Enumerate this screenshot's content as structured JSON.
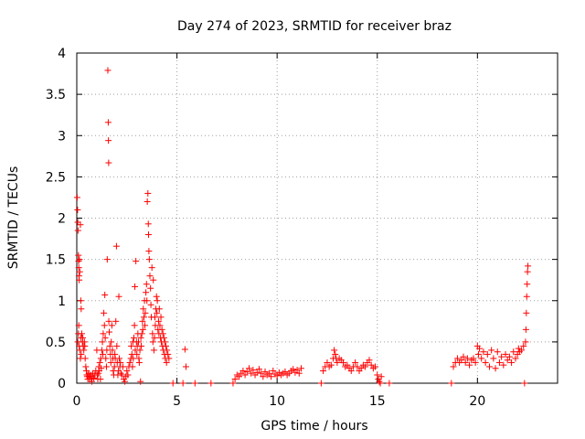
{
  "chart_data": {
    "type": "scatter",
    "title": "Day 274 of 2023, SRMTID for receiver braz",
    "xlabel": "GPS time / hours",
    "ylabel": "SRMTID / TECUs",
    "xlim": [
      0,
      24
    ],
    "ylim": [
      0,
      4
    ],
    "x_ticks": [
      0,
      5,
      10,
      15,
      20
    ],
    "x_tick_labels": [
      "0",
      "5",
      "10",
      "15",
      "20"
    ],
    "y_ticks": [
      0,
      0.5,
      1,
      1.5,
      2,
      2.5,
      3,
      3.5,
      4
    ],
    "y_tick_labels": [
      "0",
      "0.5",
      "1",
      "1.5",
      "2",
      "2.5",
      "3",
      "3.5",
      "4"
    ],
    "grid": true,
    "marker": "+",
    "color": "#ff0000",
    "series": [
      {
        "name": "SRMTID",
        "points": [
          [
            0.02,
            2.25
          ],
          [
            0.04,
            2.1
          ],
          [
            0.05,
            1.95
          ],
          [
            0.06,
            1.85
          ],
          [
            0.08,
            1.55
          ],
          [
            0.09,
            1.48
          ],
          [
            0.1,
            1.4
          ],
          [
            0.11,
            1.3
          ],
          [
            0.12,
            1.25
          ],
          [
            0.13,
            1.5
          ],
          [
            0.15,
            1.35
          ],
          [
            0.18,
            1.92
          ],
          [
            0.2,
            1.0
          ],
          [
            0.22,
            0.9
          ],
          [
            0.05,
            0.5
          ],
          [
            0.08,
            0.6
          ],
          [
            0.1,
            0.7
          ],
          [
            0.12,
            0.45
          ],
          [
            0.15,
            0.4
          ],
          [
            0.18,
            0.3
          ],
          [
            0.2,
            0.55
          ],
          [
            0.22,
            0.35
          ],
          [
            0.25,
            0.6
          ],
          [
            0.28,
            0.5
          ],
          [
            0.3,
            0.55
          ],
          [
            0.32,
            0.45
          ],
          [
            0.35,
            0.4
          ],
          [
            0.38,
            0.5
          ],
          [
            0.4,
            0.45
          ],
          [
            0.42,
            0.3
          ],
          [
            0.45,
            0.2
          ],
          [
            0.48,
            0.15
          ],
          [
            0.5,
            0.1
          ],
          [
            0.52,
            0.08
          ],
          [
            0.55,
            0.05
          ],
          [
            0.58,
            0.1
          ],
          [
            0.6,
            0.12
          ],
          [
            0.62,
            0.05
          ],
          [
            0.65,
            0.08
          ],
          [
            0.7,
            0.1
          ],
          [
            0.72,
            0.05
          ],
          [
            0.75,
            0.02
          ],
          [
            0.78,
            0.08
          ],
          [
            0.8,
            0.12
          ],
          [
            0.85,
            0.06
          ],
          [
            0.9,
            0.1
          ],
          [
            0.95,
            0.15
          ],
          [
            1.0,
            0.4
          ],
          [
            1.02,
            0.1
          ],
          [
            1.05,
            0.05
          ],
          [
            1.08,
            0.12
          ],
          [
            1.1,
            0.2
          ],
          [
            1.12,
            0.15
          ],
          [
            1.15,
            0.25
          ],
          [
            1.18,
            0.05
          ],
          [
            1.2,
            0.3
          ],
          [
            1.22,
            0.18
          ],
          [
            1.25,
            0.4
          ],
          [
            1.28,
            0.5
          ],
          [
            1.3,
            0.35
          ],
          [
            1.32,
            0.6
          ],
          [
            1.35,
            0.85
          ],
          [
            1.38,
            0.7
          ],
          [
            1.4,
            1.07
          ],
          [
            1.42,
            0.55
          ],
          [
            1.45,
            0.3
          ],
          [
            1.48,
            0.2
          ],
          [
            1.5,
            0.4
          ],
          [
            1.52,
            1.5
          ],
          [
            1.55,
            3.79
          ],
          [
            1.57,
            3.16
          ],
          [
            1.58,
            2.94
          ],
          [
            1.59,
            2.67
          ],
          [
            1.6,
            0.75
          ],
          [
            1.62,
            0.62
          ],
          [
            1.65,
            0.45
          ],
          [
            1.68,
            0.35
          ],
          [
            1.7,
            0.25
          ],
          [
            1.72,
            0.5
          ],
          [
            1.75,
            0.7
          ],
          [
            1.78,
            0.4
          ],
          [
            1.8,
            0.3
          ],
          [
            1.82,
            0.15
          ],
          [
            1.85,
            0.1
          ],
          [
            1.88,
            0.2
          ],
          [
            1.9,
            0.35
          ],
          [
            1.92,
            0.3
          ],
          [
            1.95,
            0.75
          ],
          [
            1.98,
            1.66
          ],
          [
            2.0,
            0.45
          ],
          [
            2.02,
            0.25
          ],
          [
            2.05,
            0.1
          ],
          [
            2.08,
            0.15
          ],
          [
            2.1,
            1.05
          ],
          [
            2.12,
            0.3
          ],
          [
            2.15,
            0.2
          ],
          [
            2.18,
            0.25
          ],
          [
            2.2,
            0.12
          ],
          [
            2.25,
            0.1
          ],
          [
            2.3,
            0.2
          ],
          [
            2.35,
            0.05
          ],
          [
            2.4,
            0.02
          ],
          [
            2.45,
            0.08
          ],
          [
            2.5,
            0.15
          ],
          [
            2.55,
            0.1
          ],
          [
            2.6,
            0.2
          ],
          [
            2.65,
            0.25
          ],
          [
            2.7,
            0.3
          ],
          [
            2.72,
            0.45
          ],
          [
            2.75,
            0.35
          ],
          [
            2.78,
            0.2
          ],
          [
            2.8,
            0.5
          ],
          [
            2.82,
            0.3
          ],
          [
            2.85,
            0.55
          ],
          [
            2.88,
            0.7
          ],
          [
            2.9,
            1.17
          ],
          [
            2.92,
            0.4
          ],
          [
            2.95,
            1.48
          ],
          [
            2.98,
            0.5
          ],
          [
            3.0,
            0.35
          ],
          [
            3.02,
            0.45
          ],
          [
            3.05,
            0.6
          ],
          [
            3.08,
            0.5
          ],
          [
            3.1,
            0.3
          ],
          [
            3.12,
            0.25
          ],
          [
            3.15,
            0.4
          ],
          [
            3.18,
            0.02
          ],
          [
            3.2,
            0.55
          ],
          [
            3.22,
            0.45
          ],
          [
            3.25,
            0.6
          ],
          [
            3.28,
            0.75
          ],
          [
            3.3,
            0.65
          ],
          [
            3.32,
            0.9
          ],
          [
            3.35,
            0.8
          ],
          [
            3.38,
            1.0
          ],
          [
            3.4,
            0.7
          ],
          [
            3.42,
            0.85
          ],
          [
            3.45,
            1.1
          ],
          [
            3.48,
            1.2
          ],
          [
            3.5,
            1.0
          ],
          [
            3.52,
            2.2
          ],
          [
            3.55,
            2.3
          ],
          [
            3.57,
            1.93
          ],
          [
            3.58,
            1.8
          ],
          [
            3.6,
            1.6
          ],
          [
            3.62,
            1.5
          ],
          [
            3.65,
            1.3
          ],
          [
            3.68,
            1.15
          ],
          [
            3.7,
            0.95
          ],
          [
            3.72,
            0.8
          ],
          [
            3.75,
            1.4
          ],
          [
            3.78,
            0.6
          ],
          [
            3.8,
            0.5
          ],
          [
            3.82,
            1.25
          ],
          [
            3.85,
            0.4
          ],
          [
            3.88,
            0.55
          ],
          [
            3.9,
            0.8
          ],
          [
            3.92,
            0.7
          ],
          [
            3.95,
            0.9
          ],
          [
            3.98,
            1.05
          ],
          [
            4.0,
            0.85
          ],
          [
            4.02,
            1.0
          ],
          [
            4.05,
            0.65
          ],
          [
            4.08,
            0.75
          ],
          [
            4.1,
            0.6
          ],
          [
            4.12,
            0.9
          ],
          [
            4.15,
            0.7
          ],
          [
            4.18,
            0.55
          ],
          [
            4.2,
            0.8
          ],
          [
            4.22,
            0.5
          ],
          [
            4.25,
            0.65
          ],
          [
            4.28,
            0.45
          ],
          [
            4.3,
            0.6
          ],
          [
            4.32,
            0.4
          ],
          [
            4.35,
            0.55
          ],
          [
            4.38,
            0.35
          ],
          [
            4.4,
            0.5
          ],
          [
            4.42,
            0.3
          ],
          [
            4.45,
            0.45
          ],
          [
            4.48,
            0.25
          ],
          [
            4.5,
            0.4
          ],
          [
            4.55,
            0.35
          ],
          [
            4.6,
            0.3
          ],
          [
            4.8,
            0.0
          ],
          [
            5.3,
            0.0
          ],
          [
            5.4,
            0.41
          ],
          [
            5.45,
            0.2
          ],
          [
            5.9,
            0.0
          ],
          [
            6.7,
            0.0
          ],
          [
            7.8,
            0.0
          ],
          [
            7.9,
            0.05
          ],
          [
            8.0,
            0.1
          ],
          [
            8.1,
            0.08
          ],
          [
            8.2,
            0.12
          ],
          [
            8.3,
            0.15
          ],
          [
            8.4,
            0.1
          ],
          [
            8.5,
            0.14
          ],
          [
            8.6,
            0.18
          ],
          [
            8.7,
            0.12
          ],
          [
            8.8,
            0.16
          ],
          [
            8.9,
            0.1
          ],
          [
            9.0,
            0.13
          ],
          [
            9.1,
            0.17
          ],
          [
            9.2,
            0.12
          ],
          [
            9.3,
            0.08
          ],
          [
            9.4,
            0.14
          ],
          [
            9.5,
            0.1
          ],
          [
            9.6,
            0.12
          ],
          [
            9.7,
            0.08
          ],
          [
            9.8,
            0.15
          ],
          [
            9.9,
            0.11
          ],
          [
            10.0,
            0.09
          ],
          [
            10.1,
            0.13
          ],
          [
            10.2,
            0.1
          ],
          [
            10.3,
            0.12
          ],
          [
            10.4,
            0.14
          ],
          [
            10.5,
            0.1
          ],
          [
            10.6,
            0.12
          ],
          [
            10.7,
            0.15
          ],
          [
            10.8,
            0.17
          ],
          [
            10.9,
            0.13
          ],
          [
            11.0,
            0.16
          ],
          [
            11.1,
            0.12
          ],
          [
            11.2,
            0.18
          ],
          [
            12.2,
            0.0
          ],
          [
            12.3,
            0.15
          ],
          [
            12.4,
            0.2
          ],
          [
            12.5,
            0.25
          ],
          [
            12.6,
            0.2
          ],
          [
            12.7,
            0.22
          ],
          [
            12.8,
            0.3
          ],
          [
            12.85,
            0.4
          ],
          [
            12.9,
            0.35
          ],
          [
            12.95,
            0.3
          ],
          [
            13.0,
            0.25
          ],
          [
            13.1,
            0.3
          ],
          [
            13.2,
            0.28
          ],
          [
            13.3,
            0.25
          ],
          [
            13.4,
            0.2
          ],
          [
            13.5,
            0.22
          ],
          [
            13.6,
            0.18
          ],
          [
            13.7,
            0.15
          ],
          [
            13.8,
            0.2
          ],
          [
            13.9,
            0.25
          ],
          [
            14.0,
            0.2
          ],
          [
            14.1,
            0.15
          ],
          [
            14.2,
            0.18
          ],
          [
            14.3,
            0.22
          ],
          [
            14.4,
            0.2
          ],
          [
            14.5,
            0.25
          ],
          [
            14.6,
            0.28
          ],
          [
            14.7,
            0.22
          ],
          [
            14.8,
            0.18
          ],
          [
            14.9,
            0.2
          ],
          [
            15.0,
            0.1
          ],
          [
            15.05,
            0.05
          ],
          [
            15.1,
            0.02
          ],
          [
            15.15,
            0.0
          ],
          [
            15.2,
            0.08
          ],
          [
            15.6,
            0.0
          ],
          [
            18.7,
            0.0
          ],
          [
            18.8,
            0.2
          ],
          [
            18.9,
            0.25
          ],
          [
            19.0,
            0.3
          ],
          [
            19.1,
            0.25
          ],
          [
            19.2,
            0.28
          ],
          [
            19.3,
            0.32
          ],
          [
            19.4,
            0.25
          ],
          [
            19.5,
            0.3
          ],
          [
            19.6,
            0.22
          ],
          [
            19.7,
            0.28
          ],
          [
            19.8,
            0.3
          ],
          [
            19.9,
            0.25
          ],
          [
            20.0,
            0.45
          ],
          [
            20.05,
            0.35
          ],
          [
            20.1,
            0.42
          ],
          [
            20.2,
            0.3
          ],
          [
            20.3,
            0.38
          ],
          [
            20.4,
            0.25
          ],
          [
            20.5,
            0.35
          ],
          [
            20.6,
            0.2
          ],
          [
            20.7,
            0.4
          ],
          [
            20.8,
            0.3
          ],
          [
            20.9,
            0.18
          ],
          [
            21.0,
            0.38
          ],
          [
            21.1,
            0.25
          ],
          [
            21.2,
            0.32
          ],
          [
            21.3,
            0.22
          ],
          [
            21.4,
            0.35
          ],
          [
            21.5,
            0.28
          ],
          [
            21.6,
            0.32
          ],
          [
            21.7,
            0.25
          ],
          [
            21.8,
            0.38
          ],
          [
            21.9,
            0.3
          ],
          [
            22.0,
            0.35
          ],
          [
            22.05,
            0.42
          ],
          [
            22.1,
            0.38
          ],
          [
            22.2,
            0.4
          ],
          [
            22.3,
            0.45
          ],
          [
            22.35,
            0.0
          ],
          [
            22.4,
            0.5
          ],
          [
            22.42,
            0.65
          ],
          [
            22.44,
            0.85
          ],
          [
            22.46,
            1.05
          ],
          [
            22.48,
            1.2
          ],
          [
            22.5,
            1.35
          ],
          [
            22.52,
            1.42
          ]
        ]
      }
    ]
  }
}
